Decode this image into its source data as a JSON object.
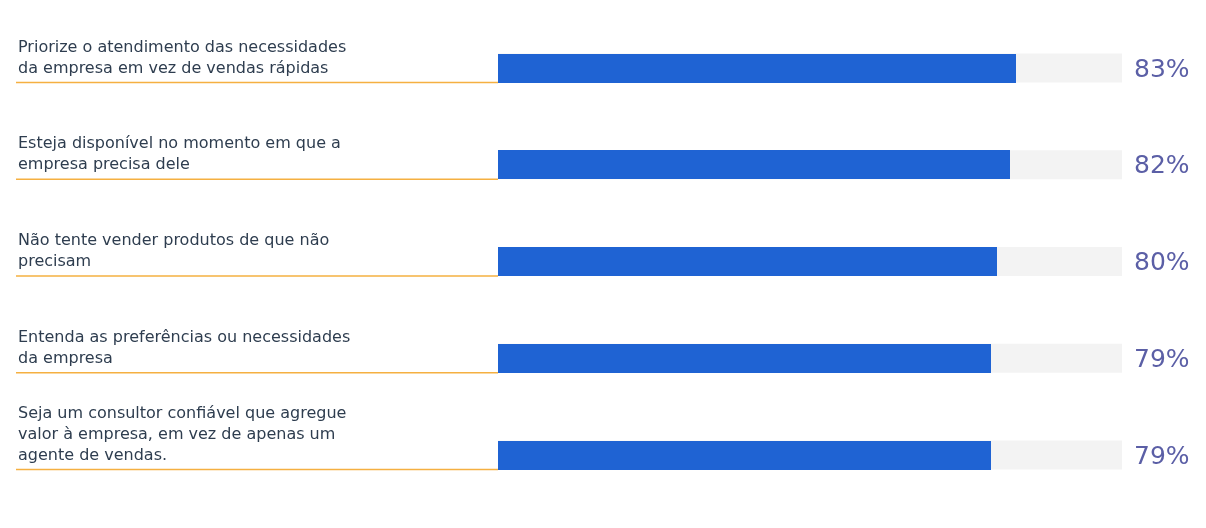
{
  "chart_data": {
    "type": "bar",
    "orientation": "horizontal",
    "categories": [
      "Priorize o atendimento das necessidades da empresa em vez de vendas rápidas",
      "Esteja disponível no momento em que a empresa precisa dele",
      "Não tente vender produtos de que não precisam",
      "Entenda as preferências ou necessidades da empresa",
      "Seja um consultor confiável que agregue valor à empresa, em vez de apenas um agente de vendas."
    ],
    "values": [
      83,
      82,
      80,
      79,
      79
    ],
    "value_labels": [
      "83%",
      "82%",
      "80%",
      "79%",
      "79%"
    ],
    "color": "#1f63d3",
    "xlim": [
      0,
      100
    ]
  }
}
